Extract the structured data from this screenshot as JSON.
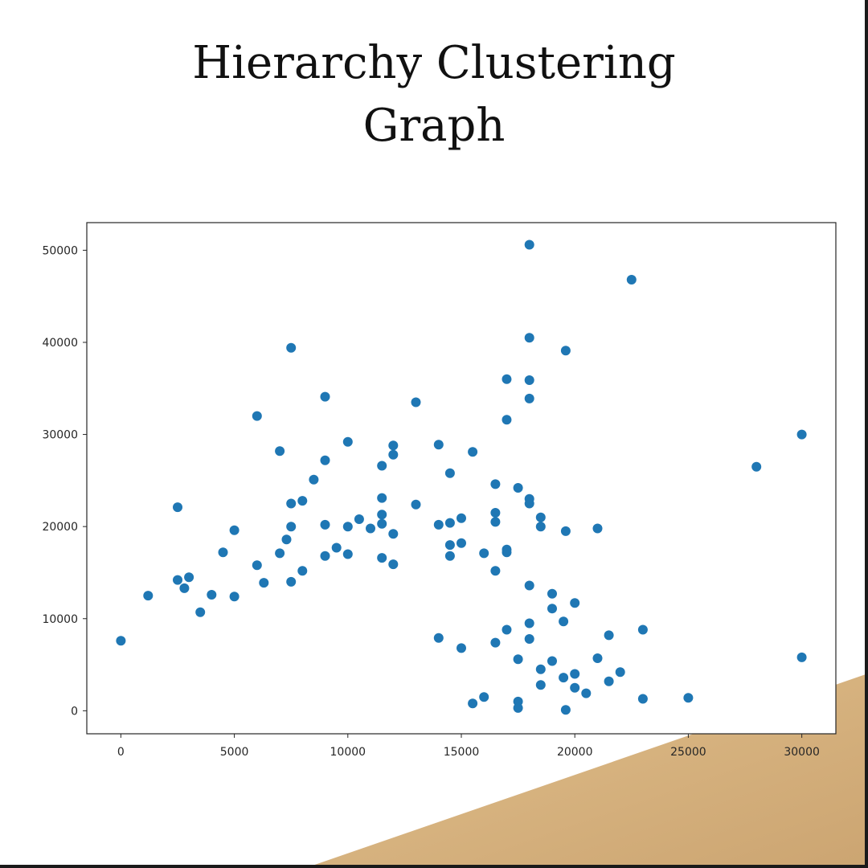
{
  "title_line1": "Hierarchy Clustering",
  "title_line2": "Graph",
  "colors": {
    "point": "#1f77b4",
    "axis": "#262626",
    "accent_wood": "#d6b27c",
    "border": "#1a1a1a"
  },
  "chart_data": {
    "type": "scatter",
    "title": "",
    "xlabel": "",
    "ylabel": "",
    "xlim": [
      -1500,
      31500
    ],
    "ylim": [
      -2500,
      53000
    ],
    "x_ticks": [
      0,
      5000,
      10000,
      15000,
      20000,
      25000,
      30000
    ],
    "y_ticks": [
      0,
      10000,
      20000,
      30000,
      40000,
      50000
    ],
    "grid": false,
    "legend": "none",
    "series": [
      {
        "color": "#1f77b4",
        "points": [
          [
            0,
            7600
          ],
          [
            2500,
            22100
          ],
          [
            1200,
            12500
          ],
          [
            2500,
            14200
          ],
          [
            2800,
            13300
          ],
          [
            3000,
            14500
          ],
          [
            6000,
            32000
          ],
          [
            7500,
            39400
          ],
          [
            9000,
            34100
          ],
          [
            7000,
            28200
          ],
          [
            8500,
            25100
          ],
          [
            10000,
            29200
          ],
          [
            9000,
            27200
          ],
          [
            11500,
            26600
          ],
          [
            12000,
            28800
          ],
          [
            12000,
            27800
          ],
          [
            13000,
            33500
          ],
          [
            14000,
            28900
          ],
          [
            14500,
            25800
          ],
          [
            15500,
            28100
          ],
          [
            17000,
            36000
          ],
          [
            17000,
            31600
          ],
          [
            18000,
            50600
          ],
          [
            18000,
            40500
          ],
          [
            18000,
            35900
          ],
          [
            18000,
            33900
          ],
          [
            19600,
            39100
          ],
          [
            22500,
            46800
          ],
          [
            30000,
            30000
          ],
          [
            28000,
            26500
          ],
          [
            16500,
            24600
          ],
          [
            17500,
            24200
          ],
          [
            18000,
            23000
          ],
          [
            18000,
            22500
          ],
          [
            18500,
            21000
          ],
          [
            18500,
            20000
          ],
          [
            19600,
            19500
          ],
          [
            21000,
            19800
          ],
          [
            7500,
            22500
          ],
          [
            8000,
            22800
          ],
          [
            11500,
            23100
          ],
          [
            13000,
            22400
          ],
          [
            5000,
            19600
          ],
          [
            7500,
            20000
          ],
          [
            9000,
            20200
          ],
          [
            10000,
            20000
          ],
          [
            10500,
            20800
          ],
          [
            11000,
            19800
          ],
          [
            11500,
            21300
          ],
          [
            11500,
            20300
          ],
          [
            12000,
            19200
          ],
          [
            14000,
            20200
          ],
          [
            14500,
            20400
          ],
          [
            15000,
            20900
          ],
          [
            16500,
            21500
          ],
          [
            16500,
            20500
          ],
          [
            4500,
            17200
          ],
          [
            6000,
            15800
          ],
          [
            7000,
            17100
          ],
          [
            7300,
            18600
          ],
          [
            8000,
            15200
          ],
          [
            9000,
            16800
          ],
          [
            9500,
            17700
          ],
          [
            10000,
            17000
          ],
          [
            11500,
            16600
          ],
          [
            12000,
            15900
          ],
          [
            14500,
            16800
          ],
          [
            14500,
            18000
          ],
          [
            15000,
            18200
          ],
          [
            16000,
            17100
          ],
          [
            17000,
            17500
          ],
          [
            17000,
            17200
          ],
          [
            16500,
            15200
          ],
          [
            18000,
            13600
          ],
          [
            19000,
            12700
          ],
          [
            20000,
            11700
          ],
          [
            19000,
            11100
          ],
          [
            21500,
            8200
          ],
          [
            23000,
            8800
          ],
          [
            21000,
            5700
          ],
          [
            22000,
            4200
          ],
          [
            21500,
            3200
          ],
          [
            20500,
            1900
          ],
          [
            23000,
            1300
          ],
          [
            25000,
            1400
          ],
          [
            30000,
            5800
          ],
          [
            19600,
            100
          ],
          [
            19500,
            9700
          ],
          [
            18000,
            9500
          ],
          [
            18000,
            7800
          ],
          [
            17000,
            8800
          ],
          [
            16500,
            7400
          ],
          [
            15000,
            6800
          ],
          [
            14000,
            7900
          ],
          [
            20000,
            4000
          ],
          [
            20000,
            2500
          ],
          [
            19500,
            3600
          ],
          [
            19000,
            5400
          ],
          [
            18500,
            4500
          ],
          [
            18500,
            2800
          ],
          [
            17500,
            5600
          ],
          [
            17500,
            1000
          ],
          [
            17500,
            300
          ],
          [
            16000,
            1500
          ],
          [
            15500,
            800
          ],
          [
            7500,
            14000
          ],
          [
            6300,
            13900
          ],
          [
            5000,
            12400
          ],
          [
            4000,
            12600
          ],
          [
            3500,
            10700
          ]
        ]
      }
    ]
  }
}
